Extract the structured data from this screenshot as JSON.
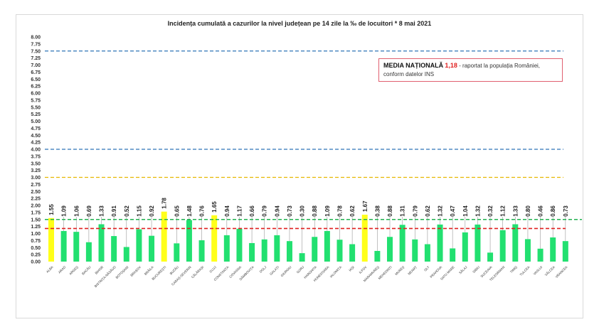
{
  "chart_data": {
    "type": "bar",
    "title": "Incidența cumulată a cazurilor la nivel județean pe 14 zile la ‰ de locuitori *  8 mai 2021",
    "xlabel": "",
    "ylabel": "",
    "ylim": [
      0,
      8
    ],
    "ytick_step": 0.25,
    "categories": [
      "ALBA",
      "ARAD",
      "ARGEȘ",
      "BACĂU",
      "BIHOR",
      "BISTRIȚA-NĂSĂUD",
      "BOTOȘANI",
      "BRAȘOV",
      "BRĂILA",
      "BUCUREȘTI",
      "BUZĂU",
      "CARAȘ-SEVERIN",
      "CĂLĂRAȘI",
      "CLUJ",
      "CONSTANȚA",
      "COVASNA",
      "DÂMBOVIȚA",
      "DOLJ",
      "GALAȚI",
      "GIURGIU",
      "GORJ",
      "HARGHITA",
      "HUNEDOARA",
      "IALOMIȚA",
      "IAȘI",
      "ILFOV",
      "MARAMUREȘ",
      "MEHEDINȚI",
      "MUREȘ",
      "NEAMȚ",
      "OLT",
      "PRAHOVA",
      "SATU MARE",
      "SĂLAJ",
      "SIBIU",
      "SUCEAVA",
      "TELEORMAN",
      "TIMIȘ",
      "TULCEA",
      "VASLUI",
      "VÂLCEA",
      "VRANCEA"
    ],
    "values": [
      1.55,
      1.09,
      1.06,
      0.69,
      1.33,
      0.91,
      0.52,
      1.15,
      0.92,
      1.78,
      0.65,
      1.48,
      0.76,
      1.65,
      0.94,
      1.17,
      0.66,
      0.79,
      0.94,
      0.73,
      0.3,
      0.88,
      1.09,
      0.78,
      0.62,
      1.67,
      0.38,
      0.88,
      1.31,
      0.79,
      0.62,
      1.32,
      0.47,
      1.04,
      1.32,
      0.32,
      1.12,
      1.33,
      0.8,
      0.46,
      0.86,
      0.73
    ],
    "bar_color": "#22e070",
    "highlight_color": "#ffff1a",
    "highlight_threshold": 1.5,
    "reference_lines": [
      {
        "value": 7.5,
        "color": "#2e75b6"
      },
      {
        "value": 4.0,
        "color": "#2e75b6"
      },
      {
        "value": 3.0,
        "color": "#e6b800"
      },
      {
        "value": 1.5,
        "color": "#22b050"
      },
      {
        "value": 1.18,
        "color": "#e02020"
      }
    ],
    "legend": {
      "heading": "MEDIA NAȚIONALĂ",
      "value": "1,18",
      "text": "- raportat la populația României, conform datelor INS"
    }
  }
}
